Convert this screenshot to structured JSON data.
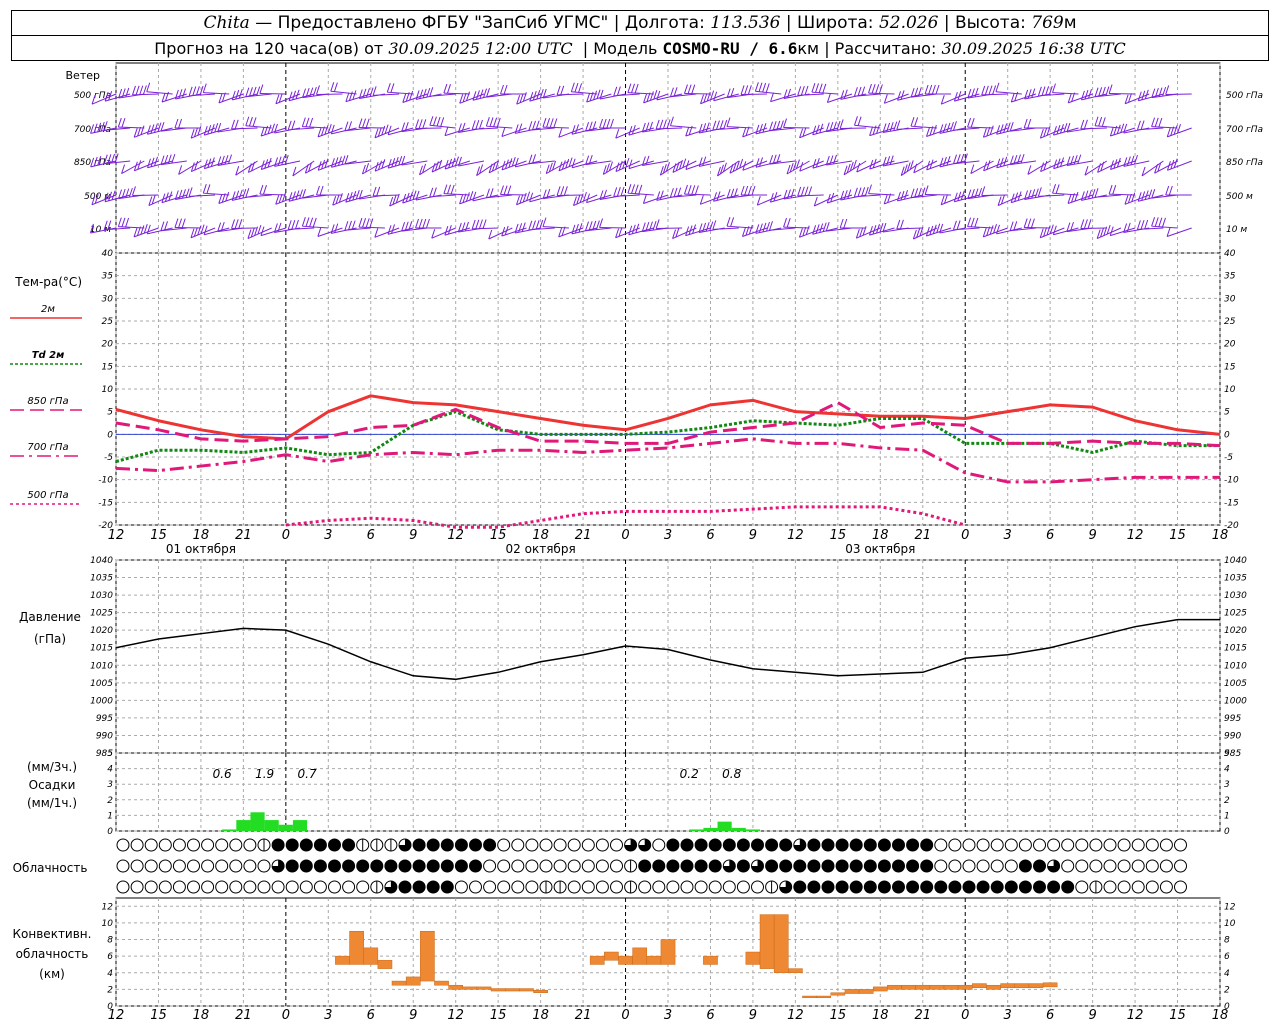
{
  "header": {
    "row1": {
      "place": "Chita",
      "provider": "— Предоставлено ФГБУ \"ЗапСиб УГМС\"",
      "lon_label": "| Долгота:",
      "lon_value": "113.536",
      "lat_label": "| Широта:",
      "lat_value": "52.026",
      "alt_label": "| Высота:",
      "alt_value": "769",
      "alt_unit": "м"
    },
    "row2": {
      "forecast_label": "Прогноз на 120 часа(ов) от",
      "forecast_from": "30.09.2025 12:00 UTC",
      "model_label": "| Модель",
      "model_name": "COSMO-RU / 6.6",
      "model_unit": "км",
      "calc_label": "| Рассчитано:",
      "calc_value": "30.09.2025 16:38 UTC"
    }
  },
  "chart_data": [
    {
      "type": "barbs",
      "title": "Ветер",
      "levels": [
        "500 гПа",
        "700 гПа",
        "850 гПа",
        "500 м",
        "10 м"
      ],
      "color": "#7a22d8"
    },
    {
      "type": "line",
      "ylabel": "Тем-ра(°С)",
      "ylim": [
        -20,
        40
      ],
      "yticks": [
        -20,
        -15,
        -10,
        -5,
        0,
        5,
        10,
        15,
        20,
        25,
        30,
        35,
        40
      ],
      "x_hours": [
        12,
        15,
        18,
        21,
        0,
        3,
        6,
        9,
        12,
        15,
        18,
        21,
        0,
        3,
        6,
        9,
        12,
        15,
        18,
        21,
        0,
        3,
        6,
        9,
        12,
        15,
        18
      ],
      "date_labels": [
        "01 октября",
        "02 октября",
        "03 октября"
      ],
      "series": [
        {
          "name": "2м",
          "color": "#ee3333",
          "dash": "solid",
          "values": [
            5.5,
            3,
            1,
            -0.5,
            -1,
            5,
            8.5,
            7,
            6.5,
            5,
            3.5,
            2,
            1,
            3.5,
            6.5,
            7.5,
            5,
            4.5,
            4,
            4,
            3.5,
            5,
            6.5,
            6,
            3,
            1,
            0
          ]
        },
        {
          "name": "Td 2м",
          "color": "#118811",
          "dash": "dot",
          "values": [
            -6,
            -3.5,
            -3.5,
            -4,
            -3,
            -4.5,
            -4,
            2,
            5,
            1,
            0,
            0,
            0,
            0.5,
            1.5,
            3,
            2.5,
            2,
            3.5,
            3.5,
            -2,
            -2,
            -2,
            -4,
            -1.5,
            -2.5,
            -2.5
          ]
        },
        {
          "name": "850 гПа",
          "color": "#e0187a",
          "dash": "dash",
          "values": [
            2.5,
            1,
            -1,
            -1.5,
            -1,
            -0.5,
            1.5,
            2,
            5.5,
            1.5,
            -1.5,
            -1.5,
            -2,
            -2,
            0.5,
            1.5,
            2.5,
            7,
            1.5,
            2.5,
            2,
            -2,
            -2,
            -1.5,
            -2,
            -2,
            -2.5
          ]
        },
        {
          "name": "700 гПа",
          "color": "#e0187a",
          "dash": "dashdot",
          "values": [
            -7.5,
            -8,
            -7,
            -6,
            -4.5,
            -6,
            -4.5,
            -4,
            -4.5,
            -3.5,
            -3.5,
            -4,
            -3.5,
            -3,
            -2,
            -1,
            -2,
            -2,
            -3,
            -3.5,
            -8.5,
            -10.5,
            -10.5,
            -10,
            -9.5,
            -9.5,
            -9.5
          ]
        },
        {
          "name": "500 гПа",
          "color": "#e0187a",
          "dash": "dotted-thick",
          "values": [
            null,
            null,
            null,
            null,
            -20,
            -19,
            -18.5,
            -19,
            -20.5,
            -20.5,
            -19,
            -17.5,
            -17,
            -17,
            -17,
            -16.5,
            -16,
            -16,
            -16,
            -17.5,
            -20,
            null,
            null,
            null,
            null,
            null,
            null
          ]
        }
      ]
    },
    {
      "type": "line",
      "ylabel": "Давление",
      "yunit": "(гПа)",
      "ylim": [
        985,
        1040
      ],
      "yticks": [
        985,
        990,
        995,
        1000,
        1005,
        1010,
        1015,
        1020,
        1025,
        1030,
        1035,
        1040
      ],
      "values": [
        1015,
        1017.5,
        1019,
        1020.5,
        1020,
        1016,
        1011,
        1007,
        1006,
        1008,
        1011,
        1013,
        1015.5,
        1014.5,
        1011.5,
        1009,
        1008,
        1007,
        1007.5,
        1008,
        1012,
        1013,
        1015,
        1018,
        1021,
        1023,
        1023
      ]
    },
    {
      "type": "bar",
      "ylabel": "Осадки",
      "yunit_top": "(мм/3ч.)",
      "yunit_bottom": "(мм/1ч.)",
      "ylim": [
        0,
        5
      ],
      "yticks": [
        0,
        1,
        2,
        3,
        4,
        5
      ],
      "color": "#22dd22",
      "hourly": [
        {
          "hour": 8,
          "value": 0.1
        },
        {
          "hour": 9,
          "value": 0.7
        },
        {
          "hour": 10,
          "value": 1.2
        },
        {
          "hour": 11,
          "value": 0.7
        },
        {
          "hour": 12,
          "value": 0.4
        },
        {
          "hour": 13,
          "value": 0.7
        },
        {
          "hour": 41,
          "value": 0.1
        },
        {
          "hour": 42,
          "value": 0.2
        },
        {
          "hour": 43,
          "value": 0.6
        },
        {
          "hour": 44,
          "value": 0.2
        },
        {
          "hour": 45,
          "value": 0.1
        }
      ],
      "totals_3h": [
        {
          "hour": 7.5,
          "label": "0.6"
        },
        {
          "hour": 10.5,
          "label": "1.9"
        },
        {
          "hour": 13.5,
          "label": "0.7"
        },
        {
          "hour": 40.5,
          "label": "0.2"
        },
        {
          "hour": 43.5,
          "label": "0.8"
        }
      ]
    },
    {
      "type": "heatmap",
      "ylabel": "Облачность",
      "rows": [
        {
          "from_hour": 0,
          "states": [
            0,
            0,
            0,
            0,
            0,
            0,
            0,
            0,
            0,
            0,
            2,
            4,
            4,
            4,
            4,
            4,
            4,
            2,
            2,
            2,
            3,
            4,
            4,
            4,
            4,
            4,
            4,
            0,
            0,
            0,
            0,
            0,
            0,
            0,
            0,
            0,
            3,
            3,
            0,
            4,
            4,
            4,
            4,
            4,
            4,
            4,
            4,
            4,
            3,
            4,
            4,
            4,
            4,
            4,
            4,
            4,
            4,
            4,
            0,
            0,
            0,
            0,
            0,
            0,
            0,
            0,
            0,
            0,
            0,
            0,
            0,
            0,
            0,
            0,
            0,
            0
          ]
        },
        {
          "from_hour": 0,
          "states": [
            0,
            0,
            0,
            0,
            0,
            0,
            0,
            0,
            0,
            0,
            0,
            3,
            4,
            4,
            4,
            4,
            4,
            4,
            4,
            4,
            4,
            4,
            4,
            4,
            4,
            4,
            0,
            0,
            0,
            0,
            0,
            0,
            0,
            0,
            0,
            0,
            2,
            4,
            4,
            4,
            4,
            4,
            4,
            3,
            4,
            3,
            4,
            4,
            4,
            4,
            4,
            4,
            4,
            4,
            4,
            4,
            4,
            4,
            0,
            0,
            0,
            0,
            0,
            0,
            4,
            4,
            3,
            0,
            0,
            0,
            0,
            0,
            0,
            0,
            0,
            0
          ]
        },
        {
          "from_hour": 0,
          "states": [
            0,
            0,
            0,
            0,
            0,
            0,
            0,
            0,
            0,
            0,
            0,
            0,
            0,
            0,
            0,
            0,
            0,
            0,
            2,
            3,
            4,
            4,
            4,
            4,
            0,
            0,
            0,
            0,
            0,
            0,
            2,
            2,
            0,
            0,
            0,
            0,
            2,
            0,
            0,
            0,
            0,
            0,
            0,
            0,
            0,
            0,
            2,
            3,
            4,
            4,
            4,
            4,
            4,
            4,
            4,
            4,
            4,
            4,
            4,
            4,
            4,
            4,
            4,
            4,
            4,
            4,
            4,
            4,
            0,
            2,
            0,
            0,
            0,
            0,
            0,
            0
          ]
        }
      ]
    },
    {
      "type": "bar",
      "ylabel": "Конвективн.",
      "ylabel2": "облачность",
      "yunit": "(км)",
      "ylim": [
        0,
        13
      ],
      "yticks": [
        0,
        2,
        4,
        6,
        8,
        10,
        12
      ],
      "color": "#ee8833",
      "bars": [
        {
          "hour": 16,
          "bottom": 5,
          "top": 6
        },
        {
          "hour": 17,
          "bottom": 5,
          "top": 9
        },
        {
          "hour": 18,
          "bottom": 5,
          "top": 7
        },
        {
          "hour": 19,
          "bottom": 4.5,
          "top": 5.5
        },
        {
          "hour": 20,
          "bottom": 2.5,
          "top": 3
        },
        {
          "hour": 21,
          "bottom": 2.5,
          "top": 3.5
        },
        {
          "hour": 22,
          "bottom": 3,
          "top": 9
        },
        {
          "hour": 23,
          "bottom": 2.5,
          "top": 3
        },
        {
          "hour": 24,
          "bottom": 2,
          "top": 2.5
        },
        {
          "hour": 25,
          "bottom": 2,
          "top": 2.3
        },
        {
          "hour": 26,
          "bottom": 2,
          "top": 2.3
        },
        {
          "hour": 27,
          "bottom": 1.8,
          "top": 2.1
        },
        {
          "hour": 28,
          "bottom": 1.8,
          "top": 2.1
        },
        {
          "hour": 29,
          "bottom": 1.8,
          "top": 2.1
        },
        {
          "hour": 30,
          "bottom": 1.6,
          "top": 1.9
        },
        {
          "hour": 34,
          "bottom": 5,
          "top": 6
        },
        {
          "hour": 35,
          "bottom": 5.5,
          "top": 6.5
        },
        {
          "hour": 36,
          "bottom": 5,
          "top": 6
        },
        {
          "hour": 37,
          "bottom": 5,
          "top": 7
        },
        {
          "hour": 38,
          "bottom": 5,
          "top": 6
        },
        {
          "hour": 39,
          "bottom": 5,
          "top": 8
        },
        {
          "hour": 42,
          "bottom": 5,
          "top": 6
        },
        {
          "hour": 45,
          "bottom": 5,
          "top": 6.5
        },
        {
          "hour": 46,
          "bottom": 4.5,
          "top": 11
        },
        {
          "hour": 47,
          "bottom": 4,
          "top": 11
        },
        {
          "hour": 48,
          "bottom": 4,
          "top": 4.5
        },
        {
          "hour": 49,
          "bottom": 1,
          "top": 1.2
        },
        {
          "hour": 50,
          "bottom": 1,
          "top": 1.2
        },
        {
          "hour": 51,
          "bottom": 1.3,
          "top": 1.6
        },
        {
          "hour": 52,
          "bottom": 1.5,
          "top": 2
        },
        {
          "hour": 53,
          "bottom": 1.5,
          "top": 2
        },
        {
          "hour": 54,
          "bottom": 1.8,
          "top": 2.3
        },
        {
          "hour": 55,
          "bottom": 2,
          "top": 2.5
        },
        {
          "hour": 56,
          "bottom": 2,
          "top": 2.5
        },
        {
          "hour": 57,
          "bottom": 2,
          "top": 2.5
        },
        {
          "hour": 58,
          "bottom": 2,
          "top": 2.5
        },
        {
          "hour": 59,
          "bottom": 2,
          "top": 2.5
        },
        {
          "hour": 60,
          "bottom": 2,
          "top": 2.5
        },
        {
          "hour": 61,
          "bottom": 2.2,
          "top": 2.7
        },
        {
          "hour": 62,
          "bottom": 2,
          "top": 2.5
        },
        {
          "hour": 63,
          "bottom": 2.2,
          "top": 2.7
        },
        {
          "hour": 64,
          "bottom": 2.2,
          "top": 2.7
        },
        {
          "hour": 65,
          "bottom": 2.2,
          "top": 2.7
        },
        {
          "hour": 66,
          "bottom": 2.3,
          "top": 2.8
        }
      ]
    }
  ]
}
